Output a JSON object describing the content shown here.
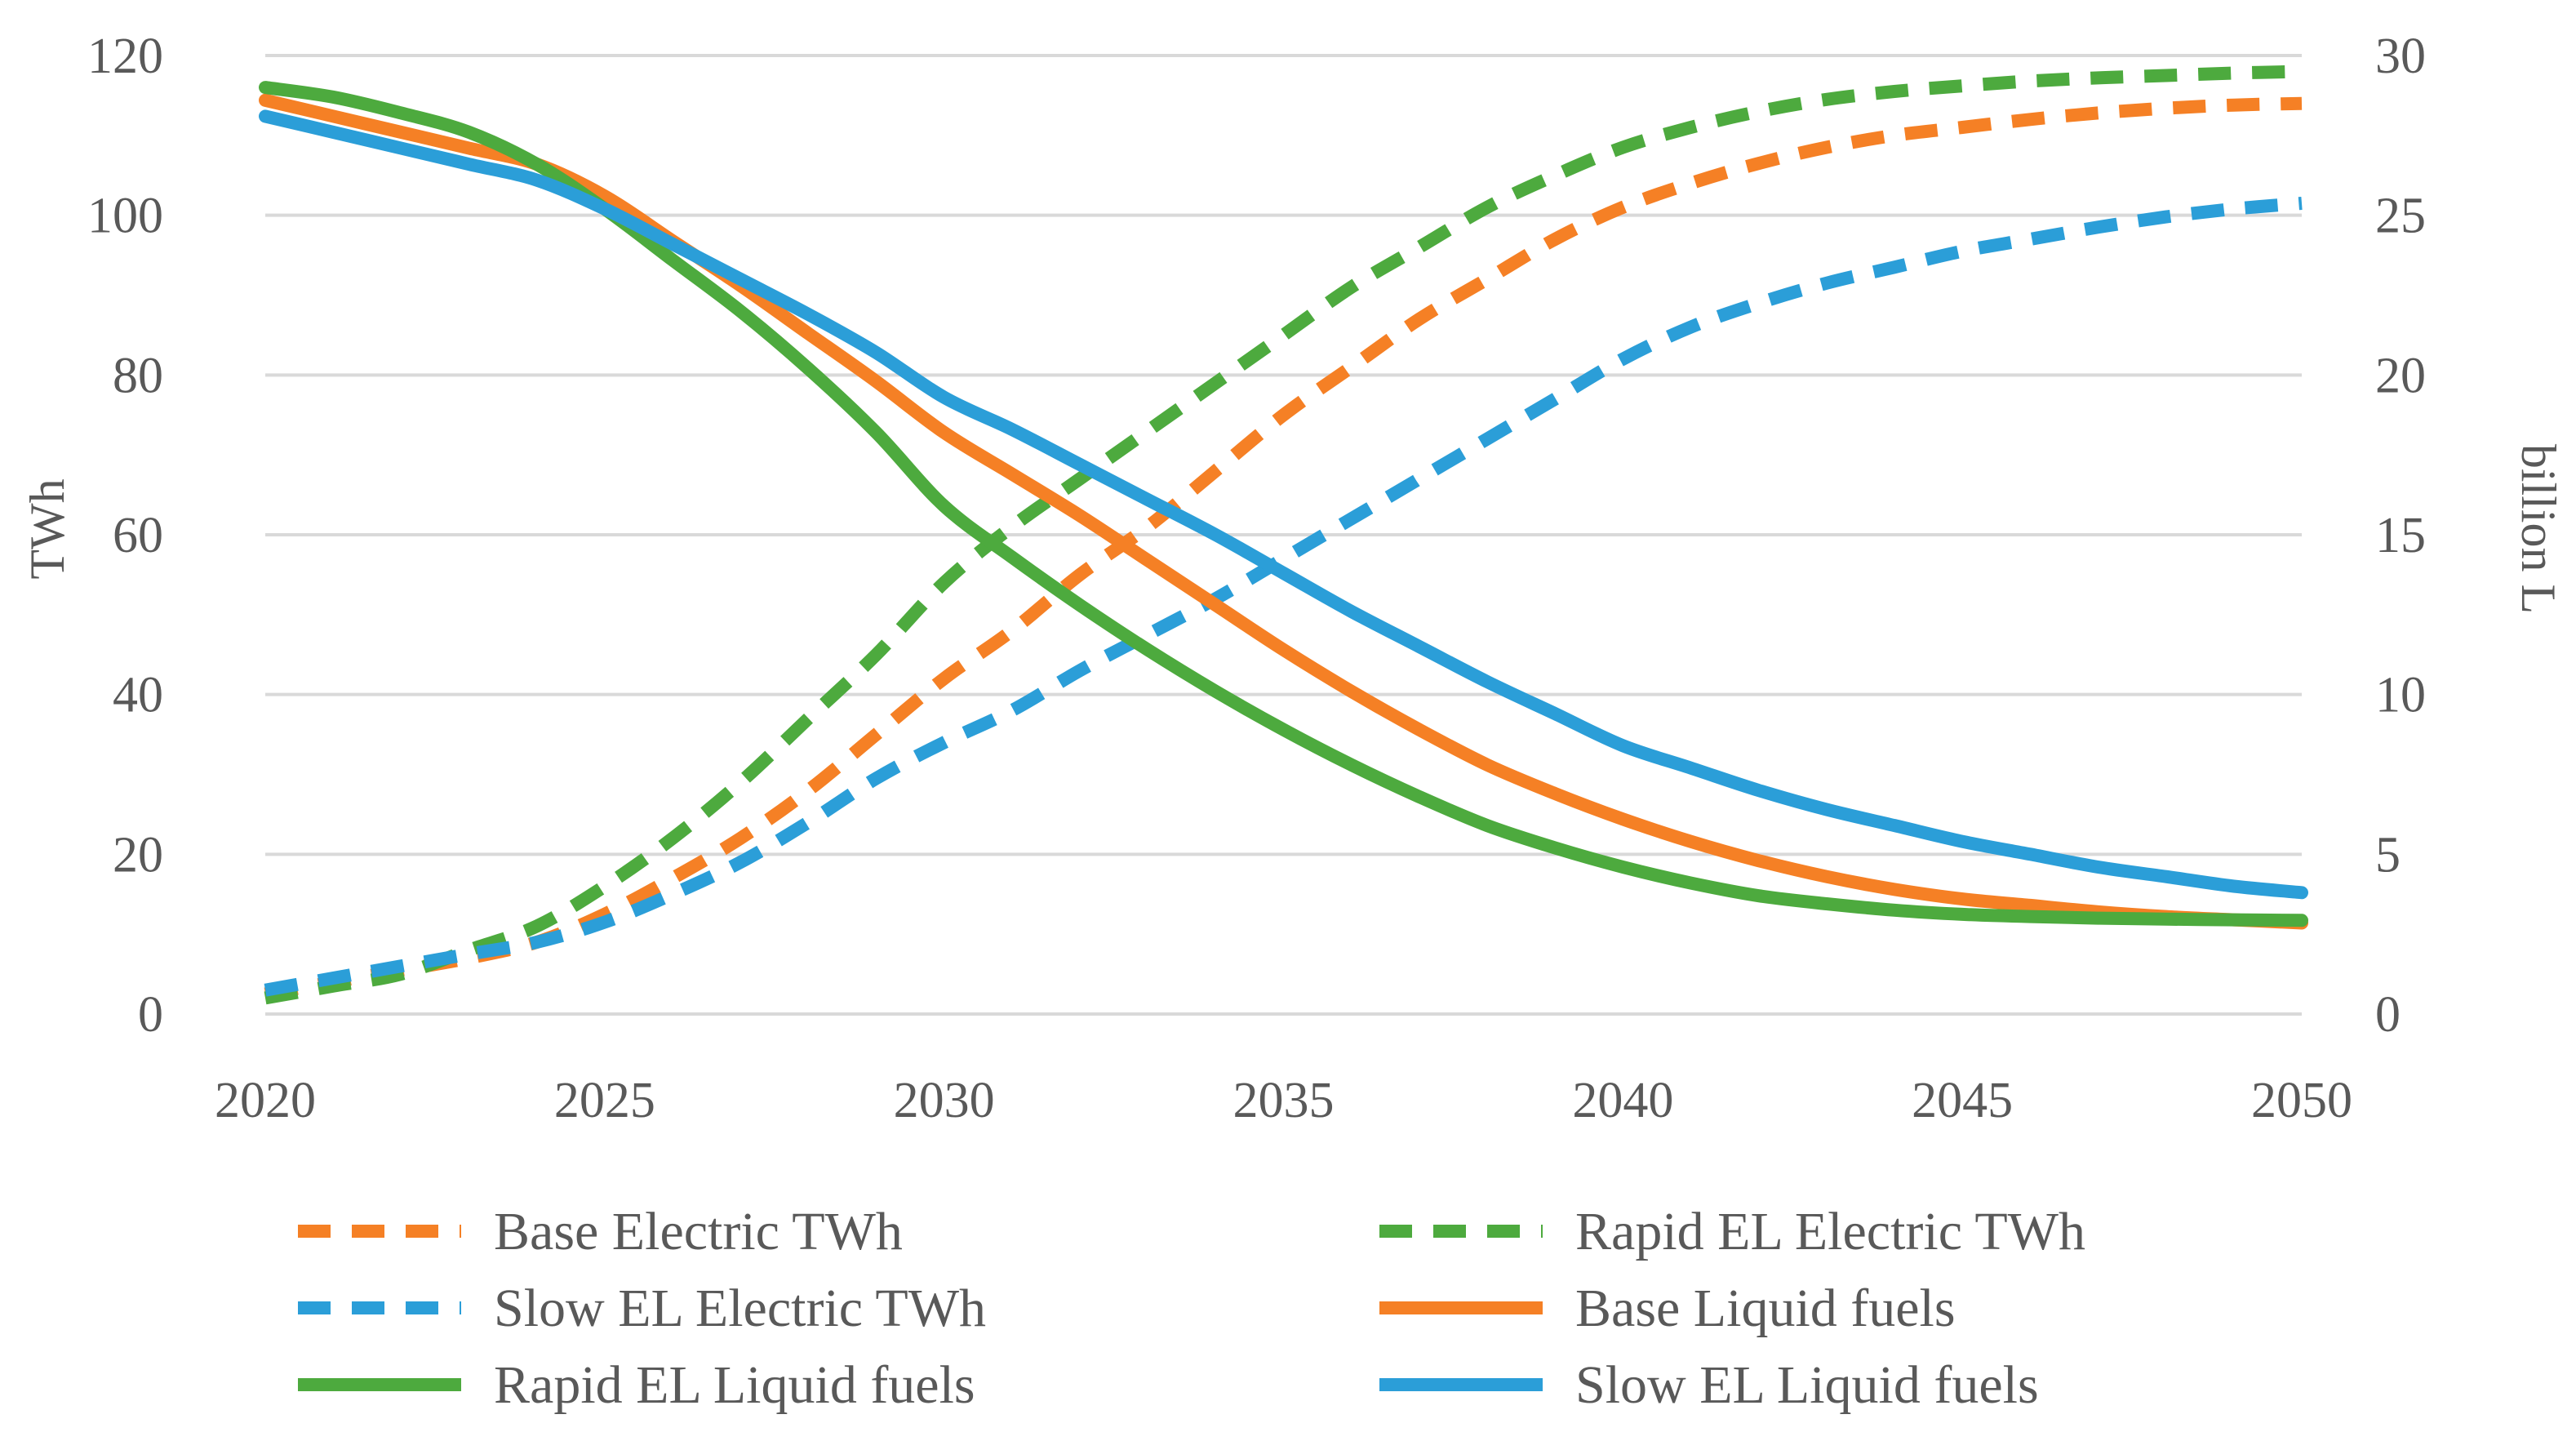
{
  "chart_data": {
    "type": "line",
    "title": "",
    "x": [
      2020,
      2021,
      2022,
      2023,
      2024,
      2025,
      2026,
      2027,
      2028,
      2029,
      2030,
      2031,
      2032,
      2033,
      2034,
      2035,
      2036,
      2037,
      2038,
      2039,
      2040,
      2041,
      2042,
      2043,
      2044,
      2045,
      2046,
      2047,
      2048,
      2049,
      2050
    ],
    "xlabel": "",
    "xlim": [
      2020,
      2050
    ],
    "x_ticks": [
      "2020",
      "2025",
      "2030",
      "2035",
      "2040",
      "2045",
      "2050"
    ],
    "ylabel_left": "TWh",
    "ylim_left": [
      0,
      120
    ],
    "y_ticks_left": [
      "0",
      "20",
      "40",
      "60",
      "80",
      "100",
      "120"
    ],
    "ylabel_right": "billion L",
    "ylim_right": [
      0,
      30
    ],
    "y_ticks_right": [
      "0",
      "5",
      "10",
      "15",
      "20",
      "25",
      "30"
    ],
    "grid": true,
    "legend_position": "bottom",
    "series": [
      {
        "name": "Base Electric TWh",
        "axis": "left",
        "style": "dashed",
        "color": "#F58025",
        "values": [
          2.5,
          4,
          5.5,
          7,
          9,
          12.5,
          17,
          22,
          28,
          35,
          42,
          48,
          55,
          61,
          68,
          75,
          81,
          87,
          92,
          97,
          101,
          104,
          106.5,
          108.5,
          110,
          111,
          112,
          112.8,
          113.4,
          113.8,
          114
        ]
      },
      {
        "name": "Rapid EL Electric TWh",
        "axis": "left",
        "style": "dashed",
        "color": "#4DAA3E",
        "values": [
          2,
          3.5,
          5,
          8,
          11,
          16,
          22,
          29,
          37,
          45,
          54,
          61,
          67,
          73,
          79,
          85,
          91,
          96,
          101,
          105,
          108.5,
          111,
          113,
          114.5,
          115.5,
          116.2,
          116.8,
          117.2,
          117.5,
          117.8,
          118
        ]
      },
      {
        "name": "Slow EL Electric TWh",
        "axis": "left",
        "style": "dashed",
        "color": "#2B9ED8",
        "values": [
          3,
          4.5,
          6,
          7.5,
          9,
          11.5,
          15,
          19,
          24,
          29.5,
          34,
          38,
          43,
          47.5,
          52,
          57,
          62,
          67,
          72,
          77,
          82,
          86,
          89,
          91.5,
          93.5,
          95.5,
          97,
          98.5,
          99.8,
          100.8,
          101.5
        ]
      },
      {
        "name": "Base Liquid fuels",
        "axis": "right",
        "style": "solid",
        "color": "#F58025",
        "values": [
          28.6,
          28.1,
          27.6,
          27.1,
          26.6,
          25.6,
          24.2,
          22.8,
          21.3,
          19.8,
          18.2,
          16.9,
          15.6,
          14.2,
          12.8,
          11.4,
          10.1,
          8.9,
          7.8,
          6.9,
          6.1,
          5.4,
          4.8,
          4.3,
          3.9,
          3.6,
          3.4,
          3.2,
          3.05,
          2.95,
          2.85
        ]
      },
      {
        "name": "Rapid EL Liquid fuels",
        "axis": "right",
        "style": "solid",
        "color": "#4DAA3E",
        "values": [
          29,
          28.7,
          28.2,
          27.6,
          26.6,
          25.2,
          23.6,
          22,
          20.2,
          18.2,
          15.9,
          14.3,
          12.8,
          11.4,
          10.1,
          8.9,
          7.8,
          6.8,
          5.9,
          5.2,
          4.6,
          4.1,
          3.7,
          3.45,
          3.25,
          3.12,
          3.05,
          3.0,
          2.97,
          2.95,
          2.93
        ]
      },
      {
        "name": "Slow EL Liquid fuels",
        "axis": "right",
        "style": "solid",
        "color": "#2B9ED8",
        "values": [
          28.1,
          27.6,
          27.1,
          26.6,
          26.1,
          25.2,
          24.1,
          23,
          21.9,
          20.7,
          19.3,
          18.3,
          17.2,
          16.1,
          15,
          13.8,
          12.6,
          11.5,
          10.4,
          9.4,
          8.4,
          7.7,
          7,
          6.4,
          5.9,
          5.4,
          5,
          4.6,
          4.3,
          4.0,
          3.8
        ]
      }
    ]
  }
}
